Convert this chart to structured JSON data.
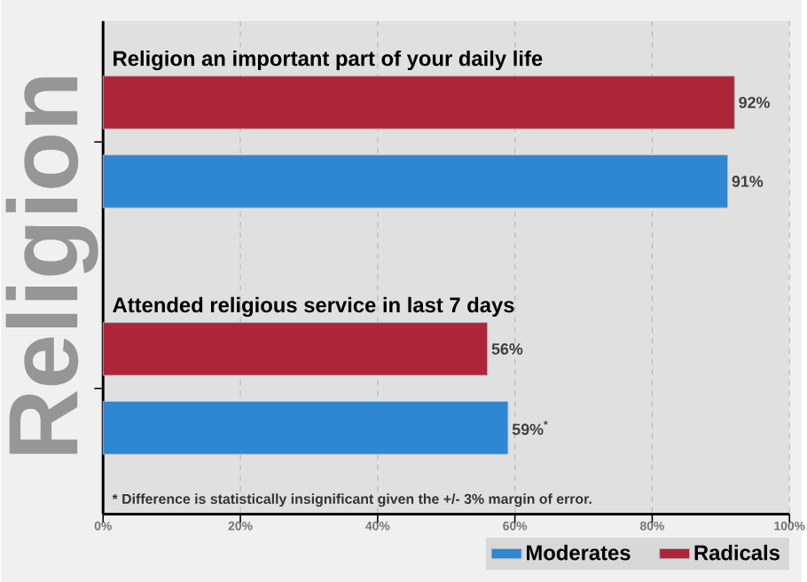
{
  "chart_data": {
    "type": "bar",
    "orientation": "horizontal",
    "ylabel": "Religion",
    "categories": [
      "Religion an important part of your daily life",
      "Attended religious service in last 7 days"
    ],
    "series": [
      {
        "name": "Moderates",
        "color": "#2f86d2",
        "values": [
          91,
          59
        ],
        "value_labels": [
          "91%",
          "59%$^{*}$"
        ]
      },
      {
        "name": "Radicals",
        "color": "#ad2539",
        "values": [
          92,
          56
        ],
        "value_labels": [
          "92%",
          "56%"
        ]
      }
    ],
    "xlim": [
      0,
      100
    ],
    "xticks": [
      {
        "value": 0,
        "label": "0%"
      },
      {
        "value": 20,
        "label": "20%"
      },
      {
        "value": 40,
        "label": "40%"
      },
      {
        "value": 60,
        "label": "60%"
      },
      {
        "value": 80,
        "label": "80%"
      },
      {
        "value": 100,
        "label": "100%"
      }
    ],
    "grid": "x",
    "legend": "bottom right",
    "annotations": [
      "* Difference is statistically insignificant given the +/- 3% margin of error."
    ]
  }
}
